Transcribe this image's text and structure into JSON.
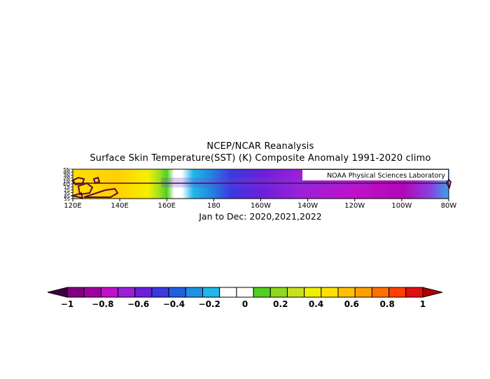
{
  "header": {
    "line1": "NCEP/NCAR Reanalysis",
    "line2": "Surface Skin Temperature(SST) (K) Composite Anomaly 1991-2020 climo"
  },
  "footer": {
    "period": "Jan to Dec: 2020,2021,2022"
  },
  "watermark": "NOAA Physical Sciences Laboratory",
  "map": {
    "lon_labels": [
      "120E",
      "140E",
      "160E",
      "180",
      "160W",
      "140W",
      "120W",
      "100W",
      "80W"
    ],
    "lat_labels": [
      "5N",
      "4N",
      "3N",
      "2N",
      "1N",
      "EQ",
      "1S",
      "2S",
      "3S",
      "4S",
      "5S"
    ],
    "domain": {
      "lon_min": 120,
      "lon_max": 280,
      "lat_min": -5,
      "lat_max": 5
    },
    "anomaly_profile_lon": [
      120,
      140,
      155,
      158,
      162,
      170,
      180,
      190,
      200,
      220,
      240,
      260,
      270,
      280
    ],
    "anomaly_profile_k": [
      0.6,
      0.5,
      0.2,
      0.0,
      -0.2,
      -0.3,
      -0.4,
      -0.5,
      -0.6,
      -0.6,
      -0.7,
      -0.7,
      -0.5,
      -0.3
    ]
  },
  "colorbar": {
    "labels": [
      "-1",
      "-0.8",
      "-0.6",
      "-0.4",
      "-0.2",
      "0",
      "0.2",
      "0.4",
      "0.6",
      "0.8",
      "1"
    ],
    "colors": [
      "#800080",
      "#a000a0",
      "#c010c8",
      "#9a20d8",
      "#6a1fd8",
      "#3a3ae0",
      "#2060e0",
      "#2090e0",
      "#20b8e8",
      "#ffffff",
      "#ffffff",
      "#50d020",
      "#90d820",
      "#c8e020",
      "#f0f000",
      "#ffe000",
      "#ffc000",
      "#ffa000",
      "#ff7000",
      "#ff4000",
      "#e01010"
    ],
    "left_cap_color": "#400040",
    "right_cap_color": "#b00000"
  }
}
